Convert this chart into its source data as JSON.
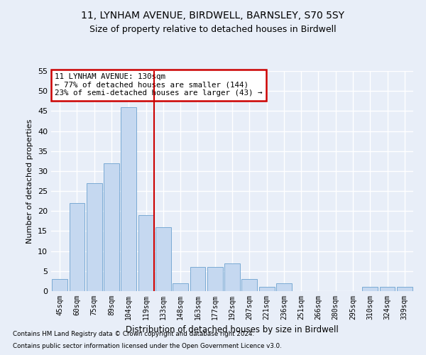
{
  "title_line1": "11, LYNHAM AVENUE, BIRDWELL, BARNSLEY, S70 5SY",
  "title_line2": "Size of property relative to detached houses in Birdwell",
  "xlabel": "Distribution of detached houses by size in Birdwell",
  "ylabel": "Number of detached properties",
  "categories": [
    "45sqm",
    "60sqm",
    "75sqm",
    "89sqm",
    "104sqm",
    "119sqm",
    "133sqm",
    "148sqm",
    "163sqm",
    "177sqm",
    "192sqm",
    "207sqm",
    "221sqm",
    "236sqm",
    "251sqm",
    "266sqm",
    "280sqm",
    "295sqm",
    "310sqm",
    "324sqm",
    "339sqm"
  ],
  "values": [
    3,
    22,
    27,
    32,
    46,
    19,
    16,
    2,
    6,
    6,
    7,
    3,
    1,
    2,
    0,
    0,
    0,
    0,
    1,
    1,
    1
  ],
  "bar_color": "#c5d8f0",
  "bar_edge_color": "#7aaad4",
  "vline_color": "#cc0000",
  "annotation_text": "11 LYNHAM AVENUE: 130sqm\n← 77% of detached houses are smaller (144)\n23% of semi-detached houses are larger (43) →",
  "annotation_box_color": "#ffffff",
  "annotation_box_edge_color": "#cc0000",
  "ylim": [
    0,
    55
  ],
  "yticks": [
    0,
    5,
    10,
    15,
    20,
    25,
    30,
    35,
    40,
    45,
    50,
    55
  ],
  "footer_line1": "Contains HM Land Registry data © Crown copyright and database right 2024.",
  "footer_line2": "Contains public sector information licensed under the Open Government Licence v3.0.",
  "bg_color": "#e8eef8",
  "plot_bg_color": "#e8eef8",
  "grid_color": "#ffffff",
  "title_fontsize": 10,
  "subtitle_fontsize": 9
}
